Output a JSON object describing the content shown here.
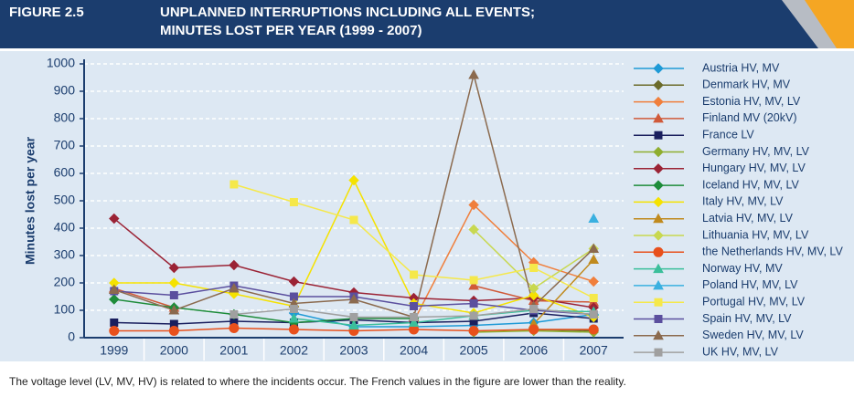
{
  "header": {
    "figure": "FIGURE 2.5"
  },
  "chart_data": {
    "type": "line",
    "title_lines": [
      "UNPLANNED INTERRUPTIONS INCLUDING ALL EVENTS;",
      "MINUTES LOST PER YEAR (1999 - 2007)"
    ],
    "y_label": "Minutes lost per year",
    "categories": [
      "1999",
      "2000",
      "2001",
      "2002",
      "2003",
      "2004",
      "2005",
      "2006",
      "2007"
    ],
    "ylim": [
      0,
      1000
    ],
    "yticks": [
      0,
      100,
      200,
      300,
      400,
      500,
      600,
      700,
      800,
      900,
      1000
    ],
    "grid": true,
    "legend": "right",
    "series": [
      {
        "name": "Austria HV, MV",
        "color": "#1f9ad6",
        "marker": "diamond",
        "values": [
          null,
          null,
          null,
          90,
          40,
          40,
          45,
          55,
          85
        ]
      },
      {
        "name": "Denmark HV, MV",
        "color": "#6b6b2a",
        "marker": "diamond",
        "values": [
          null,
          null,
          null,
          null,
          null,
          null,
          null,
          30,
          25
        ]
      },
      {
        "name": "Estonia HV, MV, LV",
        "color": "#f07f3c",
        "marker": "diamond",
        "values": [
          null,
          null,
          null,
          null,
          null,
          60,
          485,
          275,
          205
        ]
      },
      {
        "name": "Finland MV (20kV)",
        "color": "#d05a3a",
        "marker": "triangle",
        "values": [
          180,
          110,
          null,
          null,
          null,
          null,
          190,
          135,
          130
        ]
      },
      {
        "name": "France LV",
        "color": "#1a1f5e",
        "marker": "square",
        "values": [
          55,
          50,
          60,
          55,
          65,
          55,
          60,
          90,
          70
        ]
      },
      {
        "name": "Germany HV, MV, LV",
        "color": "#8fae2f",
        "marker": "diamond",
        "values": [
          null,
          null,
          null,
          null,
          null,
          null,
          20,
          25,
          20
        ]
      },
      {
        "name": "Hungary HV, MV, LV",
        "color": "#9b2335",
        "marker": "diamond",
        "values": [
          435,
          255,
          265,
          205,
          165,
          145,
          135,
          145,
          110
        ]
      },
      {
        "name": "Iceland HV, MV, LV",
        "color": "#1e8c3a",
        "marker": "diamond",
        "values": [
          140,
          110,
          85,
          55,
          70,
          70,
          null,
          null,
          null
        ]
      },
      {
        "name": "Italy HV, MV, LV",
        "color": "#f5e200",
        "marker": "diamond",
        "values": [
          200,
          200,
          160,
          115,
          575,
          125,
          90,
          155,
          75
        ]
      },
      {
        "name": "Latvia HV, MV, LV",
        "color": "#c08a1e",
        "marker": "triangle",
        "values": [
          null,
          null,
          null,
          null,
          null,
          null,
          null,
          50,
          285
        ]
      },
      {
        "name": "Lithuania HV, MV, LV",
        "color": "#c8d850",
        "marker": "diamond",
        "values": [
          null,
          null,
          null,
          null,
          null,
          null,
          395,
          180,
          325
        ]
      },
      {
        "name": "the Netherlands HV, MV, LV",
        "color": "#e8501c",
        "marker": "circle",
        "values": [
          25,
          25,
          35,
          30,
          25,
          30,
          25,
          30,
          30
        ]
      },
      {
        "name": "Norway HV, MV",
        "color": "#3bbf9b",
        "marker": "triangle",
        "values": [
          null,
          null,
          null,
          70,
          45,
          55,
          80,
          100,
          95
        ]
      },
      {
        "name": "Poland HV, MV, LV",
        "color": "#3ab0e0",
        "marker": "triangle",
        "values": [
          null,
          null,
          null,
          null,
          null,
          null,
          null,
          null,
          435
        ]
      },
      {
        "name": "Portugal HV, MV, LV",
        "color": "#f5e84a",
        "marker": "square",
        "values": [
          null,
          null,
          560,
          495,
          430,
          230,
          210,
          255,
          145
        ]
      },
      {
        "name": "Spain HV, MV, LV",
        "color": "#5b4f9e",
        "marker": "square",
        "values": [
          170,
          155,
          190,
          150,
          150,
          115,
          125,
          100,
          85
        ]
      },
      {
        "name": "Sweden HV, MV, LV",
        "color": "#8b6a4e",
        "marker": "triangle",
        "values": [
          175,
          100,
          180,
          125,
          140,
          75,
          960,
          115,
          325
        ]
      },
      {
        "name": "UK HV, MV, LV",
        "color": "#a0a0a0",
        "marker": "square",
        "values": [
          null,
          null,
          85,
          105,
          75,
          75,
          80,
          105,
          85
        ]
      }
    ],
    "note": "The voltage level (LV, MV, HV) is related to where the incidents occur. The French values in the figure are lower than the reality."
  }
}
